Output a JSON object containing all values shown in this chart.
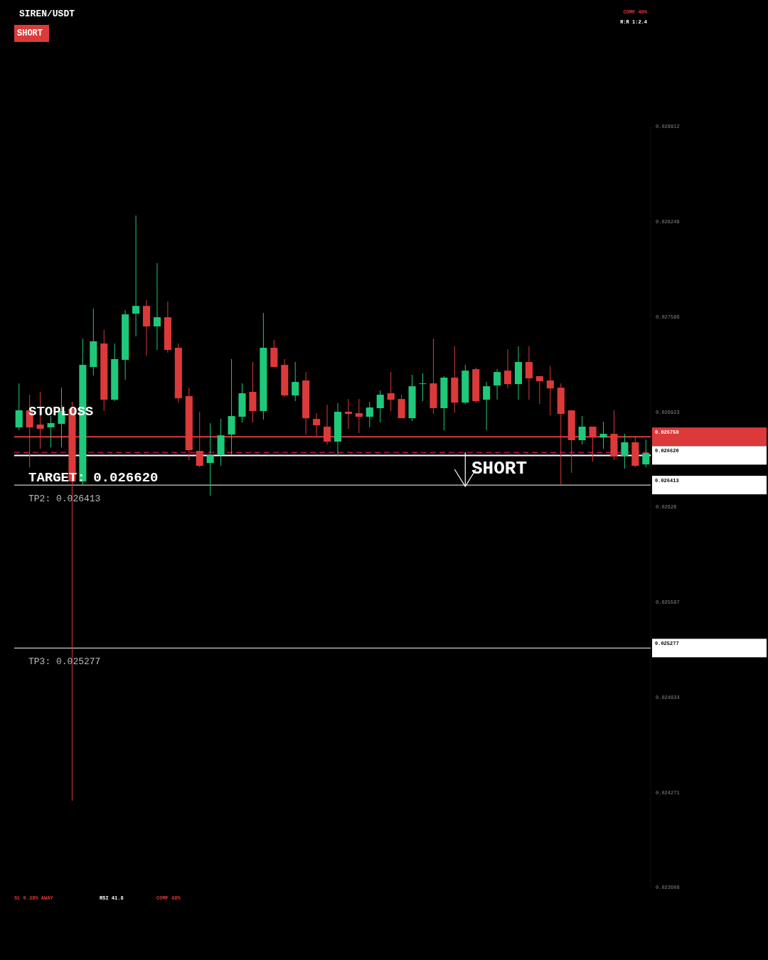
{
  "chart_data": {
    "type": "candlestick",
    "title": "SIREN/USDT",
    "categories": [
      null,
      null,
      null,
      null,
      null,
      null,
      null,
      null,
      null,
      null,
      null,
      null,
      null,
      null,
      null,
      null,
      null,
      null,
      null,
      null,
      null,
      null,
      null,
      null,
      null,
      null,
      null,
      null,
      null,
      null,
      null,
      null,
      null,
      null,
      null,
      null,
      null,
      null,
      null,
      null,
      null,
      null,
      null,
      null,
      null,
      null,
      null,
      null,
      null,
      null,
      null,
      null,
      null,
      null,
      null,
      null,
      null,
      null,
      null,
      null
    ],
    "ohlc": [
      [
        0.026815,
        0.027122,
        0.026795,
        0.026934
      ],
      [
        0.026934,
        0.027043,
        0.026537,
        0.026815
      ],
      [
        0.026835,
        0.027063,
        0.026666,
        0.026805
      ],
      [
        0.026815,
        0.026894,
        0.026676,
        0.026845
      ],
      [
        0.02684,
        0.027092,
        0.026676,
        0.026929
      ],
      [
        0.026944,
        0.026993,
        0.024212,
        0.026438
      ],
      [
        0.026438,
        0.027434,
        0.026408,
        0.027251
      ],
      [
        0.027236,
        0.027643,
        0.027177,
        0.027415
      ],
      [
        0.0274,
        0.027494,
        0.026929,
        0.027008
      ],
      [
        0.027008,
        0.0274,
        0.026998,
        0.027291
      ],
      [
        0.027286,
        0.027633,
        0.027147,
        0.027603
      ],
      [
        0.027608,
        0.028292,
        0.027449,
        0.027662
      ],
      [
        0.027662,
        0.027702,
        0.027315,
        0.027519
      ],
      [
        0.027519,
        0.02796,
        0.027355,
        0.027583
      ],
      [
        0.027583,
        0.027692,
        0.027335,
        0.027355
      ],
      [
        0.02737,
        0.0274,
        0.026988,
        0.027018
      ],
      [
        0.027033,
        0.027092,
        0.026587,
        0.026656
      ],
      [
        0.026651,
        0.026924,
        0.026537,
        0.026547
      ],
      [
        0.026567,
        0.026845,
        0.026339,
        0.026621
      ],
      [
        0.026626,
        0.026874,
        0.026547,
        0.02676
      ],
      [
        0.026765,
        0.027291,
        0.026626,
        0.026894
      ],
      [
        0.026889,
        0.027122,
        0.026849,
        0.027053
      ],
      [
        0.027063,
        0.027271,
        0.026849,
        0.026929
      ],
      [
        0.026929,
        0.027613,
        0.026869,
        0.02737
      ],
      [
        0.02737,
        0.027425,
        0.027236,
        0.027236
      ],
      [
        0.027251,
        0.027291,
        0.027028,
        0.027038
      ],
      [
        0.027038,
        0.027271,
        0.026998,
        0.027132
      ],
      [
        0.027142,
        0.027201,
        0.026765,
        0.026879
      ],
      [
        0.026874,
        0.026914,
        0.026755,
        0.02683
      ],
      [
        0.02682,
        0.026973,
        0.026696,
        0.026716
      ],
      [
        0.026716,
        0.026983,
        0.026612,
        0.026924
      ],
      [
        0.026924,
        0.027013,
        0.026805,
        0.026909
      ],
      [
        0.026914,
        0.027013,
        0.026775,
        0.026889
      ],
      [
        0.026889,
        0.026993,
        0.026815,
        0.026954
      ],
      [
        0.026949,
        0.027073,
        0.026849,
        0.027043
      ],
      [
        0.027053,
        0.027201,
        0.026929,
        0.027008
      ],
      [
        0.027013,
        0.027043,
        0.026879,
        0.026879
      ],
      [
        0.026879,
        0.027182,
        0.026859,
        0.027102
      ],
      [
        0.027117,
        0.027192,
        0.026998,
        0.027122
      ],
      [
        0.027122,
        0.027434,
        0.026909,
        0.026949
      ],
      [
        0.026949,
        0.027172,
        0.026795,
        0.027162
      ],
      [
        0.027162,
        0.02738,
        0.026919,
        0.026988
      ],
      [
        0.026988,
        0.027251,
        0.026978,
        0.027211
      ],
      [
        0.027221,
        0.027231,
        0.026988,
        0.026998
      ],
      [
        0.027008,
        0.027132,
        0.026795,
        0.027102
      ],
      [
        0.027107,
        0.027221,
        0.027008,
        0.027201
      ],
      [
        0.027211,
        0.02736,
        0.027087,
        0.027117
      ],
      [
        0.027117,
        0.02738,
        0.027008,
        0.027271
      ],
      [
        0.027271,
        0.02738,
        0.027008,
        0.027157
      ],
      [
        0.027172,
        0.027172,
        0.026978,
        0.027137
      ],
      [
        0.027142,
        0.027241,
        0.026899,
        0.027087
      ],
      [
        0.027092,
        0.027122,
        0.026418,
        0.026909
      ],
      [
        0.026934,
        0.026934,
        0.026498,
        0.026726
      ],
      [
        0.026726,
        0.026894,
        0.026696,
        0.02682
      ],
      [
        0.02682,
        0.02682,
        0.026577,
        0.026745
      ],
      [
        0.026745,
        0.026854,
        0.026666,
        0.02677
      ],
      [
        0.02677,
        0.026934,
        0.026587,
        0.026612
      ],
      [
        0.026617,
        0.02677,
        0.026527,
        0.026711
      ],
      [
        0.026711,
        0.02675,
        0.026537,
        0.026547
      ],
      [
        0.026557,
        0.026731,
        0.026537,
        0.026636
      ]
    ],
    "ylim": [
      0.023608,
      0.028912
    ],
    "yticks": [
      0.028912,
      0.028249,
      0.027586,
      0.026923,
      0.02626,
      0.025597,
      0.024934,
      0.024271,
      0.023608
    ],
    "ref_lines": [
      {
        "axis": "y",
        "value": 0.02675,
        "label": "STOPLOSS",
        "color": "#dc3a3a",
        "line_style": "solid"
      },
      {
        "axis": "y",
        "value": 0.02664,
        "color": "#b0105a",
        "line_style": "dashed"
      },
      {
        "axis": "y",
        "value": 0.02662,
        "label": "TARGET: 0.026620",
        "color": "#ffffff",
        "line_style": "solid"
      },
      {
        "axis": "y",
        "value": 0.026413,
        "label": "TP2: 0.026413",
        "color": "#ffffff",
        "line_style": "solid"
      },
      {
        "axis": "y",
        "value": 0.025277,
        "label": "TP3: 0.025277",
        "color": "#ffffff",
        "line_style": "solid"
      }
    ],
    "annotations": [
      "SHORT",
      "COMF 48%",
      "R:R 1:2.4",
      "SHORT",
      "SL 0.38% AWAY",
      "RSI 41.8",
      "COMF 48%",
      "0.026750",
      "0.026620",
      "0.026413",
      "0.025277"
    ],
    "grid": false
  }
}
